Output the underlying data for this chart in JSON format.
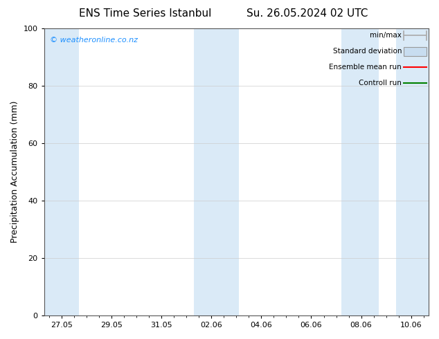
{
  "title_left": "ENS Time Series Istanbul",
  "title_right": "Su. 26.05.2024 02 UTC",
  "ylabel": "Precipitation Accumulation (mm)",
  "ylim": [
    0,
    100
  ],
  "yticks": [
    0,
    20,
    40,
    60,
    80,
    100
  ],
  "background_color": "#ffffff",
  "plot_bg_color": "#ffffff",
  "watermark": "© weatheronline.co.nz",
  "watermark_color": "#1E90FF",
  "shaded_band_color": "#daeaf7",
  "xtick_labels": [
    "27.05",
    "29.05",
    "31.05",
    "02.06",
    "04.06",
    "06.06",
    "08.06",
    "10.06"
  ],
  "xtick_positions": [
    0,
    2,
    4,
    6,
    8,
    10,
    12,
    14
  ],
  "xlim": [
    -0.7,
    14.7
  ],
  "legend_entries": [
    {
      "label": "min/max",
      "color": "#aaaaaa",
      "style": "errbar"
    },
    {
      "label": "Standard deviation",
      "color": "#c8ddf0",
      "style": "rect"
    },
    {
      "label": "Ensemble mean run",
      "color": "#ff0000",
      "style": "line"
    },
    {
      "label": "Controll run",
      "color": "#008000",
      "style": "line"
    }
  ],
  "shaded_regions": [
    [
      -0.7,
      0.7
    ],
    [
      5.3,
      7.1
    ],
    [
      11.2,
      12.7
    ],
    [
      13.4,
      14.7
    ]
  ],
  "title_fontsize": 11,
  "axis_label_fontsize": 9,
  "tick_fontsize": 8,
  "legend_fontsize": 7.5
}
